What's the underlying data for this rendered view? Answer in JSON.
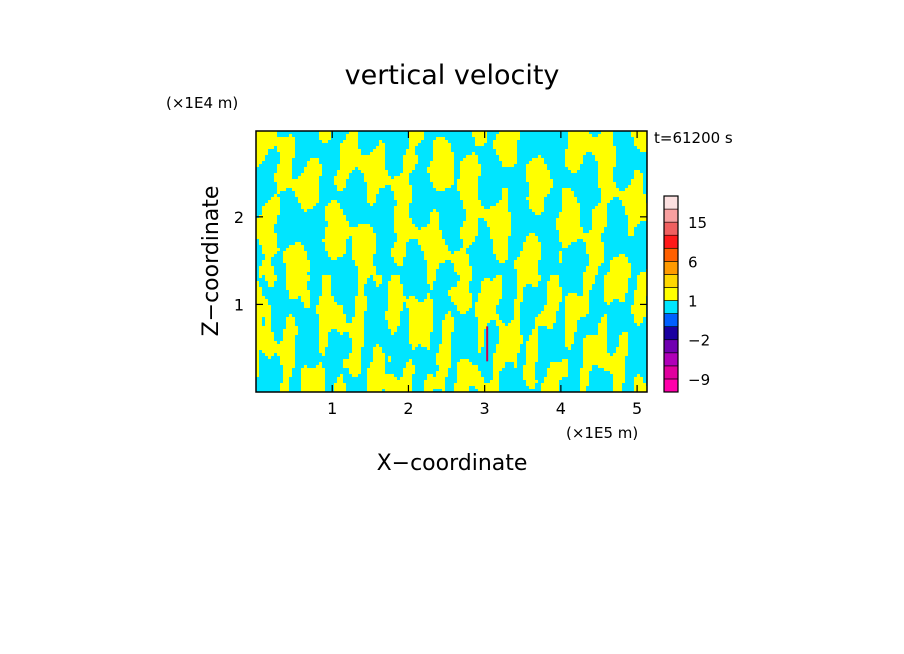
{
  "chart_data": {
    "type": "heatmap",
    "title": "vertical velocity",
    "xlabel": "X−coordinate",
    "ylabel": "Z−coordinate",
    "x_unit": "(×1E5 m)",
    "y_unit": "(×1E4 m)",
    "time_label": "t=61200 s",
    "xlim": [
      0,
      5.13
    ],
    "ylim": [
      0,
      2.98
    ],
    "x_ticks": [
      {
        "value": 1,
        "label": "1"
      },
      {
        "value": 2,
        "label": "2"
      },
      {
        "value": 3,
        "label": "3"
      },
      {
        "value": 4,
        "label": "4"
      },
      {
        "value": 5,
        "label": "5"
      }
    ],
    "y_ticks": [
      {
        "value": 1,
        "label": "1"
      },
      {
        "value": 2,
        "label": "2"
      }
    ],
    "field_colors": {
      "positive": "#ffff00",
      "negative": "#00e5ff",
      "strong_updraft": "#d0004a"
    },
    "colorbar": {
      "levels": [
        -12,
        -9,
        -6,
        -4,
        -2,
        -1,
        0,
        1,
        2,
        4,
        6,
        9,
        12,
        15,
        18,
        21
      ],
      "colors": [
        "#ff00aa",
        "#e0009e",
        "#b000b8",
        "#7000b0",
        "#1a00a0",
        "#0060ff",
        "#00e5ff",
        "#ffff00",
        "#ffd800",
        "#ff9a00",
        "#ff6000",
        "#ff1a1a",
        "#f06060",
        "#f8a0a0",
        "#fce0e0"
      ],
      "tick_labels": [
        {
          "value": 15,
          "label": "15"
        },
        {
          "value": 6,
          "label": "6"
        },
        {
          "value": 1,
          "label": "1"
        },
        {
          "value": -2,
          "label": "−2"
        },
        {
          "value": -9,
          "label": "−9"
        }
      ]
    }
  }
}
